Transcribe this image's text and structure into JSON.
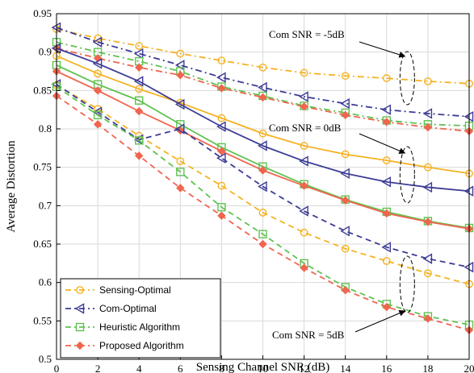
{
  "chart_data": {
    "type": "line",
    "xlabel": "Sensing Channel SNR (dB)",
    "ylabel": "Average Distortion",
    "xlim": [
      0,
      20
    ],
    "ylim": [
      0.5,
      0.95
    ],
    "xticks": [
      "0",
      "2",
      "4",
      "6",
      "8",
      "10",
      "12",
      "14",
      "16",
      "18",
      "20"
    ],
    "yticks": [
      "0.5",
      "0.55",
      "0.6",
      "0.65",
      "0.7",
      "0.75",
      "0.8",
      "0.85",
      "0.9",
      "0.95"
    ],
    "grid": true,
    "legend_position": "bottom-left",
    "x": [
      0,
      2,
      4,
      6,
      8,
      10,
      12,
      14,
      16,
      18,
      20
    ],
    "methods": [
      {
        "name": "Sensing-Optimal",
        "color": "#F5B222",
        "marker": "circle"
      },
      {
        "name": "Com-Optimal",
        "color": "#3C3C96",
        "marker": "triangle-left"
      },
      {
        "name": "Heuristic Algorithm",
        "color": "#60C250",
        "marker": "square"
      },
      {
        "name": "Proposed Algorithm",
        "color": "#F0654F",
        "marker": "diamond"
      }
    ],
    "groups": [
      {
        "label": "Com SNR = -5dB",
        "style": "dashdot",
        "values": [
          [
            0.93,
            0.918,
            0.908,
            0.898,
            0.889,
            0.88,
            0.873,
            0.869,
            0.866,
            0.862,
            0.859
          ],
          [
            0.932,
            0.913,
            0.898,
            0.883,
            0.867,
            0.854,
            0.842,
            0.833,
            0.825,
            0.82,
            0.816
          ],
          [
            0.913,
            0.9,
            0.888,
            0.875,
            0.855,
            0.843,
            0.83,
            0.821,
            0.811,
            0.806,
            0.804
          ],
          [
            0.905,
            0.892,
            0.88,
            0.87,
            0.853,
            0.841,
            0.829,
            0.818,
            0.809,
            0.802,
            0.797
          ]
        ]
      },
      {
        "label": "Com SNR = 0dB",
        "style": "solid",
        "values": [
          [
            0.895,
            0.872,
            0.852,
            0.834,
            0.814,
            0.794,
            0.778,
            0.767,
            0.759,
            0.75,
            0.742
          ],
          [
            0.905,
            0.885,
            0.862,
            0.832,
            0.803,
            0.778,
            0.758,
            0.742,
            0.731,
            0.724,
            0.719
          ],
          [
            0.883,
            0.858,
            0.837,
            0.806,
            0.776,
            0.751,
            0.728,
            0.708,
            0.692,
            0.68,
            0.671
          ],
          [
            0.875,
            0.85,
            0.823,
            0.798,
            0.771,
            0.746,
            0.726,
            0.707,
            0.69,
            0.679,
            0.67
          ]
        ]
      },
      {
        "label": "Com SNR = 5dB",
        "style": "dashed",
        "values": [
          [
            0.857,
            0.826,
            0.791,
            0.758,
            0.726,
            0.691,
            0.665,
            0.644,
            0.628,
            0.612,
            0.598
          ],
          [
            0.858,
            0.822,
            0.786,
            0.8,
            0.762,
            0.725,
            0.693,
            0.667,
            0.646,
            0.631,
            0.62
          ],
          [
            0.855,
            0.818,
            0.785,
            0.744,
            0.698,
            0.663,
            0.625,
            0.594,
            0.572,
            0.556,
            0.545
          ],
          [
            0.843,
            0.806,
            0.765,
            0.723,
            0.687,
            0.65,
            0.619,
            0.59,
            0.568,
            0.553,
            0.538
          ]
        ]
      }
    ]
  }
}
